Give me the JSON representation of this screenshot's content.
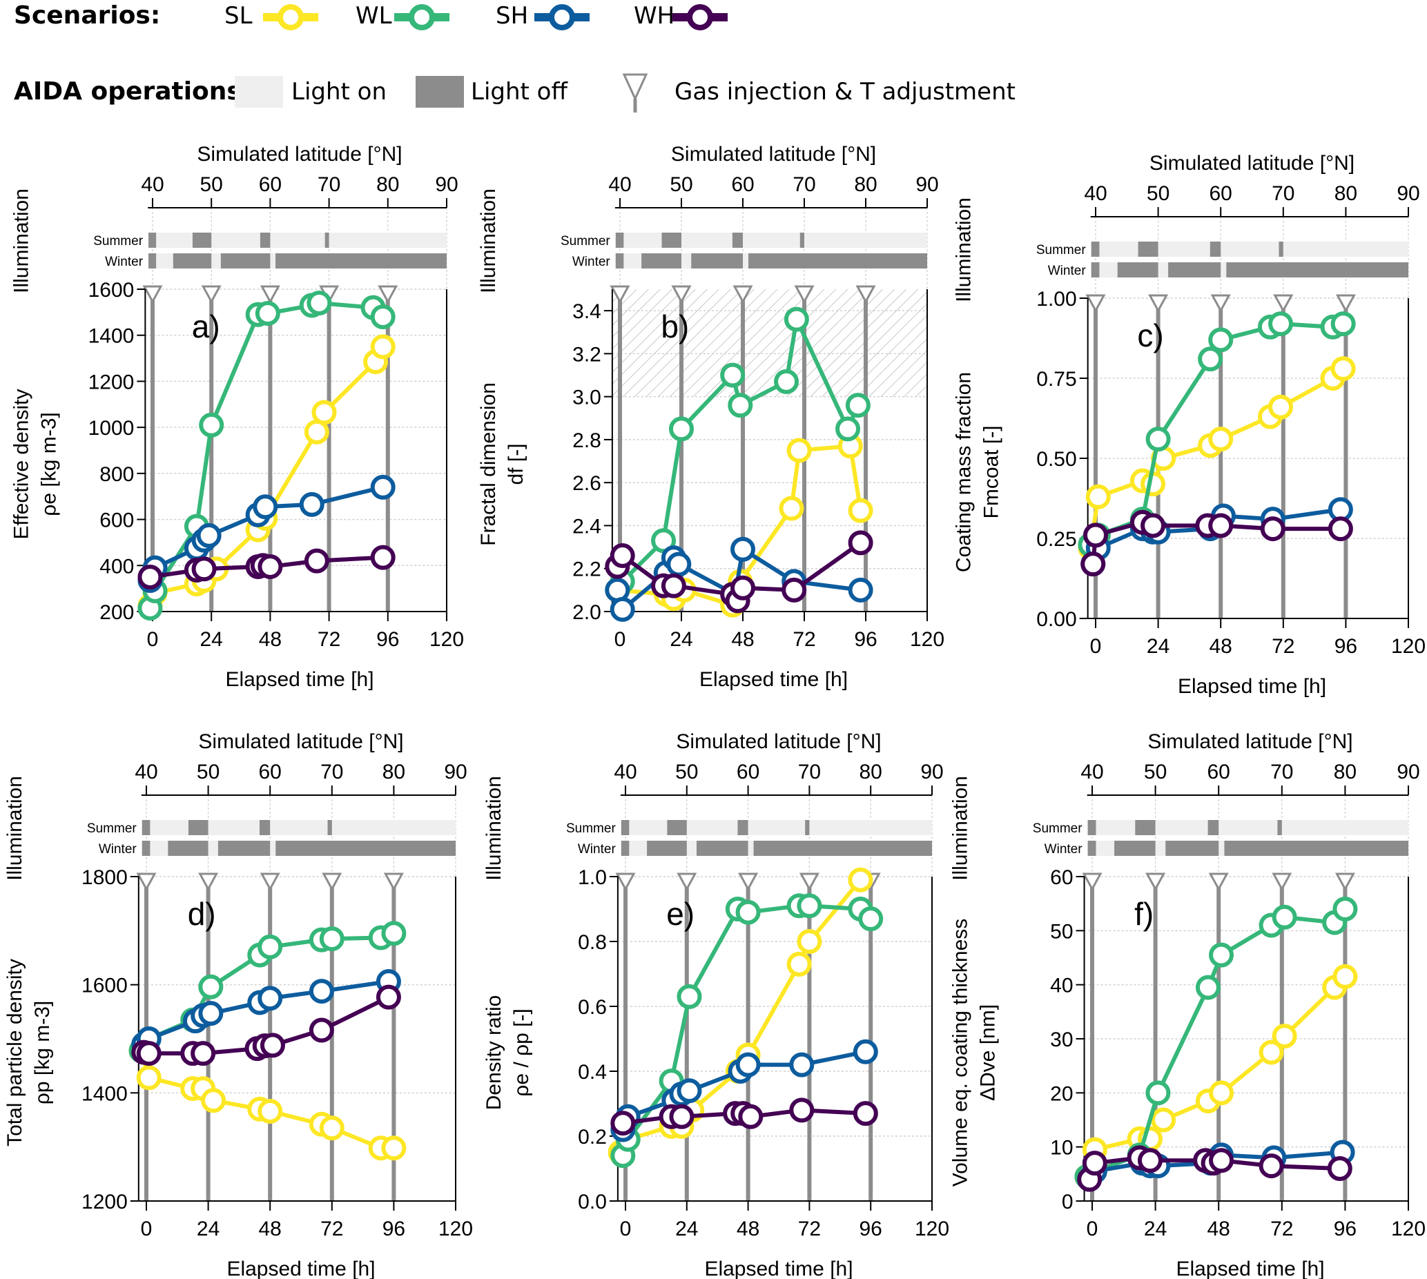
{
  "legend": {
    "scenarios_title": "Scenarios:",
    "scenarios": [
      {
        "label": "SL",
        "color": "#FDE725"
      },
      {
        "label": "WL",
        "color": "#35B779"
      },
      {
        "label": "SH",
        "color": "#0D5C9E"
      },
      {
        "label": "WH",
        "color": "#440154"
      }
    ],
    "aida_title": "AIDA operations:",
    "light_on_label": "Light on",
    "light_off_label": "Light off",
    "gas_label": "Gas injection & T adjustment",
    "light_on_color": "#EFEFF0",
    "light_off_color": "#8C8C8C"
  },
  "shared": {
    "top_axis_label": "Simulated latitude [°N]",
    "top_ticks": [
      40,
      50,
      60,
      70,
      80,
      90
    ],
    "bottom_axis_label": "Elapsed time [h]",
    "bottom_ticks": [
      0,
      24,
      48,
      72,
      96,
      120
    ],
    "illumination_label": "Illumination",
    "summer_label": "Summer",
    "winter_label": "Winter",
    "gas_injection_times_h": [
      0,
      24,
      48,
      72,
      96
    ]
  },
  "chart_data": [
    {
      "panel": "a)",
      "type": "line",
      "ylabel": "Effective density",
      "ylabel2": "ρe [kg m-3]",
      "xlim": [
        -3,
        120
      ],
      "ylim": [
        200,
        1600
      ],
      "yticks": [
        200,
        400,
        600,
        800,
        1000,
        1200,
        1400,
        1600
      ],
      "ytick_labels": [
        "200",
        "400",
        "600",
        "800",
        "1000",
        "1200",
        "1400",
        "1600"
      ],
      "series": [
        {
          "name": "SL",
          "x": [
            -1,
            1,
            18,
            21,
            26,
            43,
            46,
            67,
            70,
            91,
            94
          ],
          "y": [
            225,
            280,
            320,
            335,
            385,
            555,
            605,
            980,
            1065,
            1285,
            1350
          ]
        },
        {
          "name": "WL",
          "x": [
            -1,
            1,
            18,
            24,
            43,
            47,
            65,
            68,
            90,
            94
          ],
          "y": [
            215,
            290,
            570,
            1010,
            1490,
            1495,
            1530,
            1540,
            1520,
            1480
          ]
        },
        {
          "name": "SH",
          "x": [
            -1,
            1,
            18,
            21,
            23,
            43,
            46,
            65,
            94
          ],
          "y": [
            335,
            390,
            475,
            510,
            530,
            620,
            655,
            665,
            740
          ]
        },
        {
          "name": "WH",
          "x": [
            -1,
            18,
            21,
            43,
            45,
            48,
            67,
            94
          ],
          "y": [
            350,
            380,
            385,
            395,
            400,
            395,
            420,
            435
          ]
        }
      ],
      "hatch": null
    },
    {
      "panel": "b)",
      "type": "line",
      "ylabel": "Fractal dimension",
      "ylabel2": "df [-]",
      "xlim": [
        -3,
        120
      ],
      "ylim": [
        2.0,
        3.5
      ],
      "yticks": [
        2.0,
        2.2,
        2.4,
        2.6,
        2.8,
        3.0,
        3.2,
        3.4
      ],
      "ytick_labels": [
        "2.0",
        "2.2",
        "2.4",
        "2.6",
        "2.8",
        "3.0",
        "3.2",
        "3.4"
      ],
      "series": [
        {
          "name": "SL",
          "x": [
            -1,
            18,
            21,
            25,
            44,
            47,
            67,
            70,
            90,
            94
          ],
          "y": [
            2.1,
            2.08,
            2.06,
            2.1,
            2.03,
            2.14,
            2.48,
            2.75,
            2.77,
            2.47
          ]
        },
        {
          "name": "WL",
          "x": [
            -1,
            1,
            17,
            24,
            44,
            47,
            65,
            69,
            89,
            93
          ],
          "y": [
            2.1,
            2.14,
            2.33,
            2.85,
            3.1,
            2.96,
            3.07,
            3.36,
            2.85,
            2.96
          ]
        },
        {
          "name": "SH",
          "x": [
            -1,
            1,
            18,
            21,
            23,
            45,
            48,
            68,
            94
          ],
          "y": [
            2.1,
            2.01,
            2.18,
            2.25,
            2.22,
            2.08,
            2.29,
            2.14,
            2.1
          ]
        },
        {
          "name": "WH",
          "x": [
            -1,
            1,
            17,
            21,
            44,
            46,
            48,
            68,
            94
          ],
          "y": [
            2.21,
            2.26,
            2.12,
            2.12,
            2.08,
            2.05,
            2.11,
            2.1,
            2.32
          ]
        }
      ],
      "hatch": [
        3.0,
        3.5
      ]
    },
    {
      "panel": "c)",
      "type": "line",
      "ylabel": "Coating mass fraction",
      "ylabel2": "Fmcoat [-]",
      "xlim": [
        -3,
        120
      ],
      "ylim": [
        0,
        1.0
      ],
      "yticks": [
        0,
        0.25,
        0.5,
        0.75,
        1.0
      ],
      "ytick_labels": [
        "0.00",
        "0.25",
        "0.50",
        "0.75",
        "1.00"
      ],
      "series": [
        {
          "name": "SL",
          "x": [
            -2,
            1,
            18,
            22,
            26,
            44,
            48,
            67,
            71,
            91,
            95
          ],
          "y": [
            0.22,
            0.38,
            0.43,
            0.42,
            0.5,
            0.54,
            0.56,
            0.63,
            0.66,
            0.75,
            0.78
          ]
        },
        {
          "name": "WL",
          "x": [
            -2,
            1,
            18,
            24,
            44,
            48,
            67,
            71,
            91,
            95
          ],
          "y": [
            0.23,
            0.26,
            0.31,
            0.56,
            0.81,
            0.87,
            0.91,
            0.92,
            0.91,
            0.92
          ]
        },
        {
          "name": "SH",
          "x": [
            -1,
            1,
            18,
            22,
            24,
            44,
            49,
            68,
            94
          ],
          "y": [
            0.17,
            0.22,
            0.28,
            0.27,
            0.27,
            0.28,
            0.32,
            0.31,
            0.34
          ]
        },
        {
          "name": "WH",
          "x": [
            -1,
            0,
            18,
            22,
            43,
            48,
            68,
            94
          ],
          "y": [
            0.17,
            0.26,
            0.3,
            0.29,
            0.29,
            0.29,
            0.28,
            0.28
          ]
        }
      ],
      "hatch": null
    },
    {
      "panel": "d)",
      "type": "line",
      "ylabel": "Total particle density",
      "ylabel2": "ρp [kg m-3]",
      "xlim": [
        -3,
        120
      ],
      "ylim": [
        1200,
        1800
      ],
      "yticks": [
        1200,
        1400,
        1600,
        1800
      ],
      "ytick_labels": [
        "1200",
        "1400",
        "1600",
        "1800"
      ],
      "series": [
        {
          "name": "SL",
          "x": [
            -2,
            1,
            18,
            22,
            26,
            44,
            48,
            68,
            72,
            91,
            96
          ],
          "y": [
            1478,
            1428,
            1408,
            1408,
            1386,
            1370,
            1366,
            1342,
            1335,
            1298,
            1298
          ]
        },
        {
          "name": "WL",
          "x": [
            -2,
            1,
            18,
            25,
            44,
            48,
            68,
            72,
            91,
            96
          ],
          "y": [
            1478,
            1500,
            1535,
            1596,
            1655,
            1670,
            1683,
            1685,
            1687,
            1695
          ]
        },
        {
          "name": "SH",
          "x": [
            -1,
            1,
            19,
            22,
            25,
            44,
            48,
            68,
            94
          ],
          "y": [
            1490,
            1500,
            1533,
            1543,
            1547,
            1567,
            1575,
            1588,
            1606
          ]
        },
        {
          "name": "WH",
          "x": [
            -1,
            1,
            18,
            22,
            43,
            46,
            49,
            68,
            94
          ],
          "y": [
            1475,
            1473,
            1473,
            1473,
            1482,
            1487,
            1488,
            1516,
            1577
          ]
        }
      ],
      "hatch": null
    },
    {
      "panel": "e)",
      "type": "line",
      "ylabel": "Density ratio",
      "ylabel2": "ρe / ρp [-]",
      "xlim": [
        -3,
        120
      ],
      "ylim": [
        0,
        1.0
      ],
      "yticks": [
        0,
        0.2,
        0.4,
        0.6,
        0.8,
        1.0
      ],
      "ytick_labels": [
        "0.0",
        "0.2",
        "0.4",
        "0.6",
        "0.8",
        "1.0"
      ],
      "series": [
        {
          "name": "SL",
          "x": [
            -2,
            1,
            18,
            22,
            26,
            44,
            48,
            68,
            72,
            92
          ],
          "y": [
            0.15,
            0.19,
            0.23,
            0.23,
            0.28,
            0.4,
            0.45,
            0.73,
            0.8,
            0.99
          ]
        },
        {
          "name": "WL",
          "x": [
            -1,
            1,
            18,
            25,
            44,
            48,
            68,
            72,
            92,
            96
          ],
          "y": [
            0.14,
            0.19,
            0.37,
            0.63,
            0.9,
            0.89,
            0.91,
            0.91,
            0.9,
            0.87
          ]
        },
        {
          "name": "SH",
          "x": [
            -1,
            1,
            19,
            22,
            25,
            45,
            48,
            69,
            94
          ],
          "y": [
            0.22,
            0.26,
            0.31,
            0.33,
            0.34,
            0.4,
            0.42,
            0.42,
            0.46
          ]
        },
        {
          "name": "WH",
          "x": [
            -1,
            18,
            22,
            43,
            46,
            49,
            69,
            94
          ],
          "y": [
            0.24,
            0.26,
            0.26,
            0.27,
            0.27,
            0.26,
            0.28,
            0.27
          ]
        }
      ],
      "hatch": null
    },
    {
      "panel": "f)",
      "type": "line",
      "ylabel": "Volume eq. coating thickness",
      "ylabel2": "ΔDve [nm]",
      "xlim": [
        -3,
        120
      ],
      "ylim": [
        0,
        60
      ],
      "yticks": [
        0,
        10,
        20,
        30,
        40,
        50,
        60
      ],
      "ytick_labels": [
        "0",
        "10",
        "20",
        "30",
        "40",
        "50",
        "60"
      ],
      "series": [
        {
          "name": "SL",
          "x": [
            -2,
            1,
            18,
            22,
            27,
            44,
            49,
            68,
            73,
            92,
            96
          ],
          "y": [
            4.5,
            9.5,
            11.5,
            11.5,
            15,
            18.5,
            20,
            27.5,
            30.5,
            39.5,
            41.5
          ]
        },
        {
          "name": "WL",
          "x": [
            -2,
            1,
            18,
            25,
            44,
            49,
            68,
            73,
            92,
            96
          ],
          "y": [
            4.5,
            5.5,
            8.5,
            20,
            39.5,
            45.5,
            51,
            52.5,
            51.5,
            54
          ]
        },
        {
          "name": "SH",
          "x": [
            -1,
            1,
            19,
            22,
            25,
            45,
            49,
            69,
            95
          ],
          "y": [
            4,
            5.5,
            7,
            6.5,
            6.5,
            7,
            8.5,
            8,
            9
          ]
        },
        {
          "name": "WH",
          "x": [
            -1,
            1,
            18,
            22,
            43,
            46,
            49,
            68,
            94
          ],
          "y": [
            4,
            7,
            8,
            7.5,
            7.5,
            7,
            7.5,
            6.5,
            6
          ]
        }
      ],
      "hatch": null
    }
  ]
}
